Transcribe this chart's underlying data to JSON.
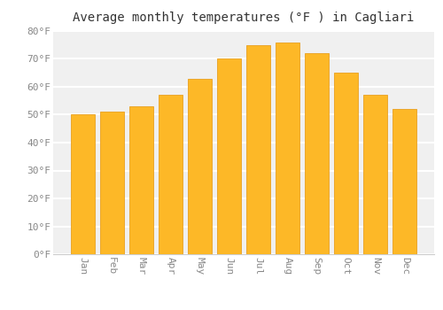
{
  "title": "Average monthly temperatures (°F ) in Cagliari",
  "months": [
    "Jan",
    "Feb",
    "Mar",
    "Apr",
    "May",
    "Jun",
    "Jul",
    "Aug",
    "Sep",
    "Oct",
    "Nov",
    "Dec"
  ],
  "values": [
    50,
    51,
    53,
    57,
    63,
    70,
    75,
    76,
    72,
    65,
    57,
    52
  ],
  "bar_color": "#FDB827",
  "bar_edge_color": "#E8A020",
  "ylim": [
    0,
    80
  ],
  "yticks": [
    0,
    10,
    20,
    30,
    40,
    50,
    60,
    70,
    80
  ],
  "ylabel_suffix": "°F",
  "background_color": "#FFFFFF",
  "plot_bg_color": "#F0F0F0",
  "grid_color": "#FFFFFF",
  "tick_label_color": "#888888",
  "title_color": "#333333",
  "title_fontsize": 10,
  "tick_fontsize": 8
}
